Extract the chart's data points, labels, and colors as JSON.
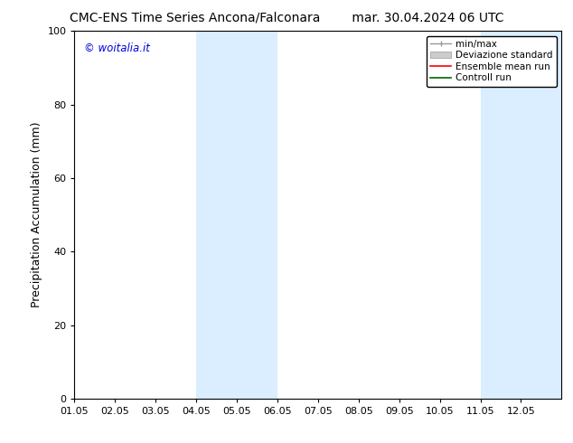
{
  "title_left": "CMC-ENS Time Series Ancona/Falconara",
  "title_right": "mar. 30.04.2024 06 UTC",
  "ylabel": "Precipitation Accumulation (mm)",
  "watermark": "© woitalia.it",
  "watermark_color": "#0000dd",
  "xlim_start": 0.0,
  "xlim_end": 12.0,
  "ylim": [
    0,
    100
  ],
  "yticks": [
    0,
    20,
    40,
    60,
    80,
    100
  ],
  "xtick_labels": [
    "01.05",
    "02.05",
    "03.05",
    "04.05",
    "05.05",
    "06.05",
    "07.05",
    "08.05",
    "09.05",
    "10.05",
    "11.05",
    "12.05"
  ],
  "bg_color": "#ffffff",
  "plot_bg_color": "#ffffff",
  "shade_color": "#daeeff",
  "shade_regions": [
    {
      "x_start": 3.0,
      "x_end": 5.0
    },
    {
      "x_start": 10.0,
      "x_end": 12.0
    }
  ],
  "title_fontsize": 10,
  "label_fontsize": 9,
  "tick_fontsize": 8,
  "legend_fontsize": 7.5
}
